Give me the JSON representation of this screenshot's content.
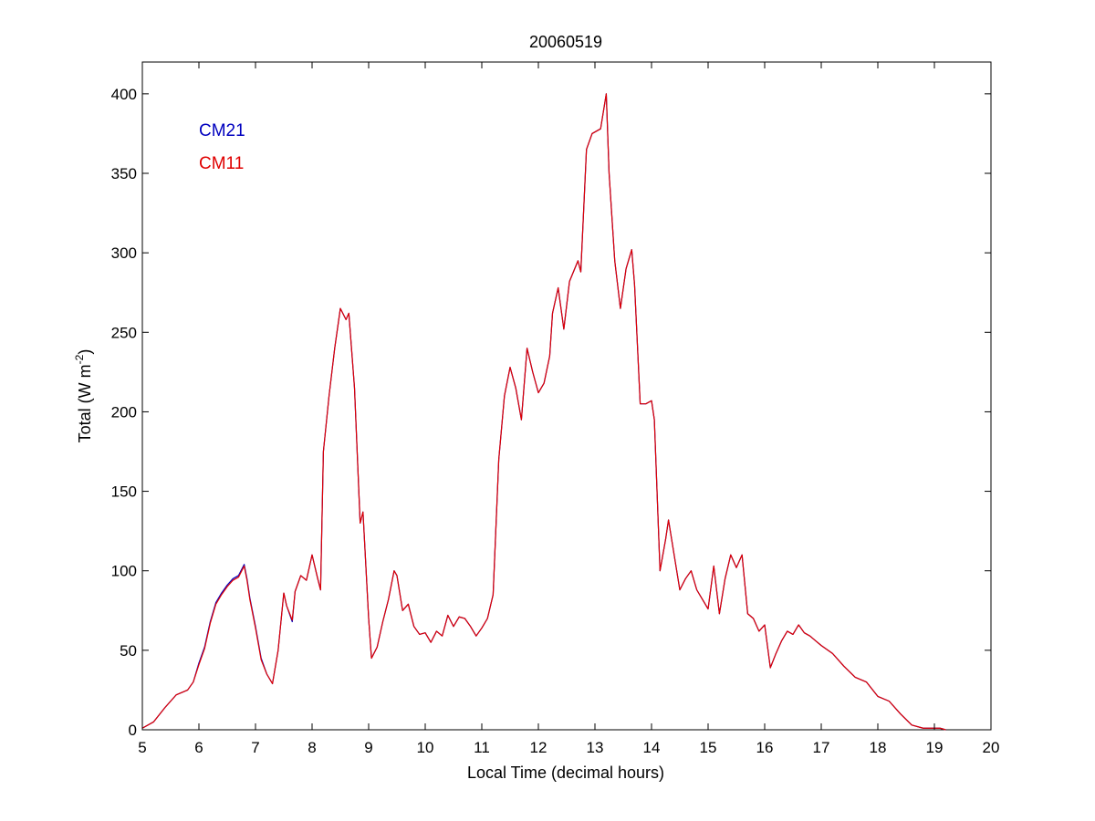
{
  "chart_data": {
    "type": "line",
    "title": "20060519",
    "xlabel": "Local Time (decimal hours)",
    "ylabel_main": "Total (W m",
    "ylabel_exp": "-2",
    "ylabel_close": ")",
    "xlim": [
      5,
      20
    ],
    "ylim": [
      0,
      420
    ],
    "xticks": [
      5,
      6,
      7,
      8,
      9,
      10,
      11,
      12,
      13,
      14,
      15,
      16,
      17,
      18,
      19,
      20
    ],
    "yticks": [
      0,
      50,
      100,
      150,
      200,
      250,
      300,
      350,
      400
    ],
    "grid": false,
    "legend_position": "top-left",
    "series": [
      {
        "name": "CM21",
        "color": "#0000bf",
        "x": [
          5.0,
          5.2,
          5.4,
          5.6,
          5.8,
          5.9,
          6.0,
          6.1,
          6.2,
          6.3,
          6.4,
          6.5,
          6.6,
          6.7,
          6.8,
          6.85,
          6.9,
          7.0,
          7.1,
          7.2,
          7.3,
          7.4,
          7.5,
          7.55,
          7.65,
          7.7,
          7.8,
          7.9,
          8.0,
          8.1,
          8.15,
          8.2,
          8.3,
          8.4,
          8.5,
          8.6,
          8.65,
          8.75,
          8.85,
          8.9,
          9.0,
          9.05,
          9.15,
          9.25,
          9.35,
          9.45,
          9.5,
          9.6,
          9.7,
          9.8,
          9.9,
          10.0,
          10.1,
          10.2,
          10.3,
          10.4,
          10.5,
          10.6,
          10.7,
          10.8,
          10.9,
          11.0,
          11.1,
          11.2,
          11.3,
          11.4,
          11.5,
          11.6,
          11.7,
          11.8,
          11.9,
          12.0,
          12.1,
          12.2,
          12.25,
          12.35,
          12.45,
          12.55,
          12.7,
          12.75,
          12.85,
          12.95,
          13.1,
          13.2,
          13.25,
          13.35,
          13.45,
          13.55,
          13.65,
          13.7,
          13.8,
          13.9,
          14.0,
          14.05,
          14.15,
          14.25,
          14.3,
          14.4,
          14.5,
          14.6,
          14.7,
          14.8,
          14.9,
          15.0,
          15.1,
          15.2,
          15.3,
          15.4,
          15.5,
          15.6,
          15.7,
          15.8,
          15.9,
          16.0,
          16.1,
          16.2,
          16.3,
          16.4,
          16.5,
          16.6,
          16.7,
          16.8,
          16.9,
          17.0,
          17.2,
          17.4,
          17.6,
          17.8,
          18.0,
          18.2,
          18.4,
          18.6,
          18.8,
          19.0,
          19.1,
          19.2
        ],
        "y": [
          1,
          5,
          14,
          22,
          25,
          30,
          42,
          52,
          68,
          80,
          86,
          91,
          95,
          97,
          104,
          95,
          83,
          65,
          45,
          35,
          29,
          50,
          86,
          78,
          68,
          87,
          97,
          94,
          110,
          95,
          88,
          175,
          210,
          240,
          265,
          258,
          262,
          215,
          130,
          137,
          70,
          45,
          52,
          68,
          82,
          100,
          97,
          75,
          79,
          65,
          60,
          61,
          55,
          62,
          59,
          72,
          65,
          71,
          70,
          65,
          59,
          64,
          70,
          85,
          170,
          210,
          228,
          215,
          195,
          240,
          225,
          212,
          218,
          235,
          262,
          278,
          252,
          282,
          295,
          288,
          365,
          375,
          378,
          400,
          350,
          295,
          265,
          290,
          302,
          280,
          205,
          205,
          207,
          195,
          100,
          120,
          132,
          110,
          88,
          95,
          100,
          88,
          82,
          76,
          103,
          73,
          95,
          110,
          102,
          110,
          73,
          70,
          62,
          66,
          39,
          48,
          56,
          62,
          60,
          66,
          61,
          59,
          56,
          53,
          48,
          40,
          33,
          30,
          21,
          18,
          10,
          3,
          1,
          1,
          1,
          0
        ]
      },
      {
        "name": "CM11",
        "color": "#e00000",
        "x": [
          5.0,
          5.2,
          5.4,
          5.6,
          5.8,
          5.9,
          6.0,
          6.1,
          6.2,
          6.3,
          6.4,
          6.5,
          6.6,
          6.7,
          6.8,
          6.85,
          6.9,
          7.0,
          7.1,
          7.2,
          7.3,
          7.4,
          7.5,
          7.55,
          7.65,
          7.7,
          7.8,
          7.9,
          8.0,
          8.1,
          8.15,
          8.2,
          8.3,
          8.4,
          8.5,
          8.6,
          8.65,
          8.75,
          8.85,
          8.9,
          9.0,
          9.05,
          9.15,
          9.25,
          9.35,
          9.45,
          9.5,
          9.6,
          9.7,
          9.8,
          9.9,
          10.0,
          10.1,
          10.2,
          10.3,
          10.4,
          10.5,
          10.6,
          10.7,
          10.8,
          10.9,
          11.0,
          11.1,
          11.2,
          11.3,
          11.4,
          11.5,
          11.6,
          11.7,
          11.8,
          11.9,
          12.0,
          12.1,
          12.2,
          12.25,
          12.35,
          12.45,
          12.55,
          12.7,
          12.75,
          12.85,
          12.95,
          13.1,
          13.2,
          13.25,
          13.35,
          13.45,
          13.55,
          13.65,
          13.7,
          13.8,
          13.9,
          14.0,
          14.05,
          14.15,
          14.25,
          14.3,
          14.4,
          14.5,
          14.6,
          14.7,
          14.8,
          14.9,
          15.0,
          15.1,
          15.2,
          15.3,
          15.4,
          15.5,
          15.6,
          15.7,
          15.8,
          15.9,
          16.0,
          16.1,
          16.2,
          16.3,
          16.4,
          16.5,
          16.6,
          16.7,
          16.8,
          16.9,
          17.0,
          17.2,
          17.4,
          17.6,
          17.8,
          18.0,
          18.2,
          18.4,
          18.6,
          18.8,
          19.0,
          19.1,
          19.2
        ],
        "y": [
          1,
          5,
          14,
          22,
          25,
          30,
          41,
          51,
          67,
          79,
          85,
          90,
          94,
          96,
          103,
          94,
          82,
          64,
          44,
          35,
          29,
          50,
          86,
          78,
          69,
          87,
          97,
          94,
          110,
          95,
          88,
          175,
          210,
          240,
          265,
          258,
          262,
          215,
          130,
          137,
          70,
          45,
          52,
          68,
          82,
          100,
          97,
          75,
          79,
          65,
          60,
          61,
          55,
          62,
          59,
          72,
          65,
          71,
          70,
          65,
          59,
          64,
          70,
          85,
          170,
          210,
          228,
          215,
          195,
          240,
          225,
          212,
          218,
          235,
          262,
          278,
          252,
          282,
          295,
          288,
          365,
          375,
          378,
          400,
          350,
          295,
          265,
          290,
          302,
          280,
          205,
          205,
          207,
          195,
          100,
          120,
          132,
          110,
          88,
          95,
          100,
          88,
          82,
          76,
          103,
          73,
          95,
          110,
          102,
          110,
          73,
          70,
          62,
          66,
          39,
          48,
          56,
          62,
          60,
          66,
          61,
          59,
          56,
          53,
          48,
          40,
          33,
          30,
          21,
          18,
          10,
          3,
          1,
          1,
          1,
          0
        ]
      }
    ]
  }
}
